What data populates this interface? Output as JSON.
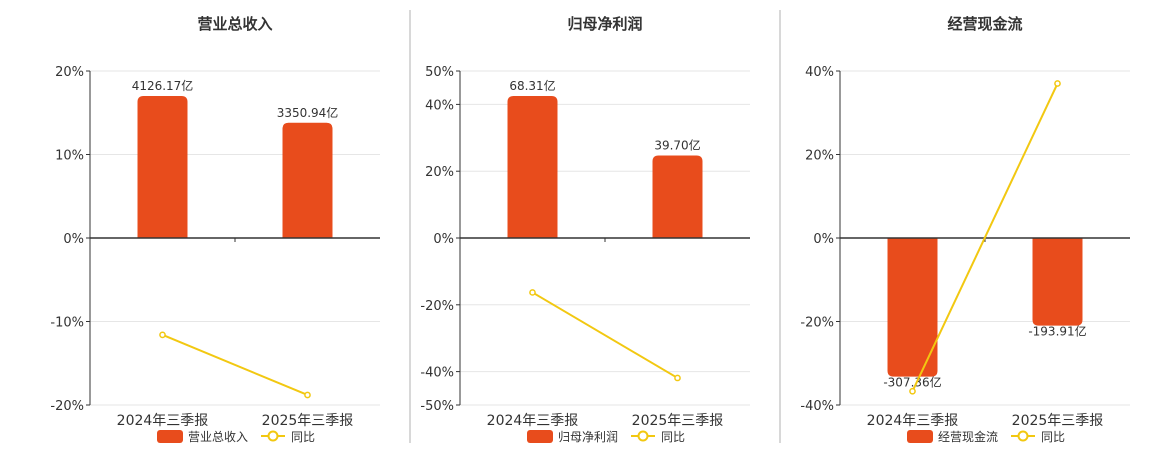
{
  "colors": {
    "bar": "#E84C1C",
    "line": "#F2C811",
    "axis": "#333333",
    "grid": "#E6E6E6",
    "divider": "#B0B0B0",
    "text": "#333333"
  },
  "chart_data": [
    {
      "type": "bar",
      "title": "营业总收入",
      "categories": [
        "2024年三季报",
        "2025年三季报"
      ],
      "ylim": [
        -20,
        20
      ],
      "yticks": [
        -20,
        -10,
        0,
        10,
        20
      ],
      "tick_labels": [
        "-20%",
        "-10%",
        "0%",
        "10%",
        "20%"
      ],
      "grid": true,
      "legend_position": "bottom",
      "series": [
        {
          "name": "营业总收入",
          "kind": "bar",
          "values": [
            17,
            13.8
          ],
          "labels": [
            "4126.17亿",
            "3350.94亿"
          ]
        },
        {
          "name": "同比",
          "kind": "line",
          "values": [
            -11.6,
            -18.8
          ]
        }
      ]
    },
    {
      "type": "bar",
      "title": "归母净利润",
      "categories": [
        "2024年三季报",
        "2025年三季报"
      ],
      "ylim": [
        -50,
        50
      ],
      "yticks": [
        -50,
        -40,
        -20,
        0,
        20,
        40,
        50
      ],
      "tick_labels": [
        "-50%",
        "-40%",
        "-20%",
        "0%",
        "20%",
        "40%",
        "50%"
      ],
      "grid": true,
      "legend_position": "bottom",
      "series": [
        {
          "name": "归母净利润",
          "kind": "bar",
          "values": [
            42.5,
            24.7
          ],
          "labels": [
            "68.31亿",
            "39.70亿"
          ]
        },
        {
          "name": "同比",
          "kind": "line",
          "values": [
            -16.3,
            -41.9
          ]
        }
      ]
    },
    {
      "type": "bar",
      "title": "经营现金流",
      "categories": [
        "2024年三季报",
        "2025年三季报"
      ],
      "ylim": [
        -40,
        40
      ],
      "yticks": [
        -40,
        -20,
        0,
        20,
        40
      ],
      "tick_labels": [
        "-40%",
        "-20%",
        "0%",
        "20%",
        "40%"
      ],
      "grid": true,
      "legend_position": "bottom",
      "series": [
        {
          "name": "经营现金流",
          "kind": "bar",
          "values": [
            -33.2,
            -21.0
          ],
          "labels": [
            "-307.36亿",
            "-193.91亿"
          ]
        },
        {
          "name": "同比",
          "kind": "line",
          "values": [
            -36.7,
            37.0
          ]
        }
      ]
    }
  ]
}
